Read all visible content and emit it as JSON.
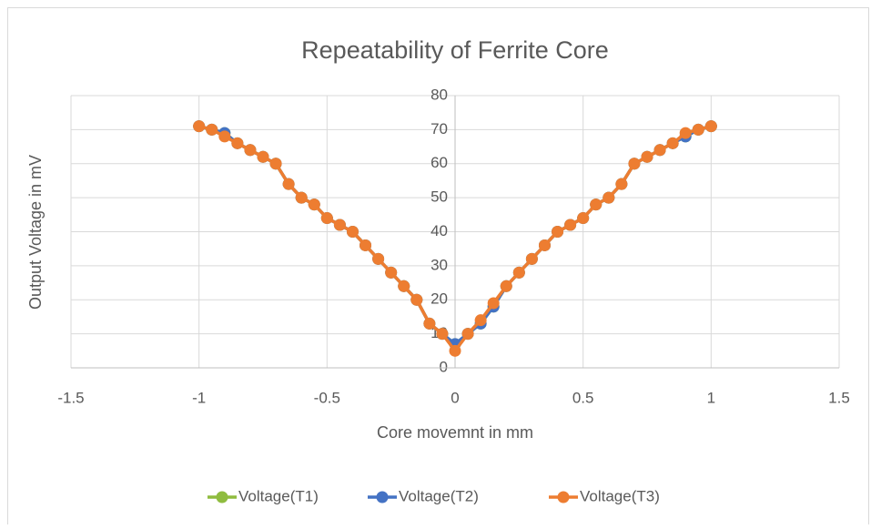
{
  "chart_data": {
    "type": "line",
    "title": "Repeatability of Ferrite Core",
    "x_label": "Core movemnt in mm",
    "y_label": "Output Voltage in mV",
    "x": [
      -1,
      -0.95,
      -0.9,
      -0.85,
      -0.8,
      -0.75,
      -0.7,
      -0.65,
      -0.6,
      -0.55,
      -0.5,
      -0.45,
      -0.4,
      -0.35,
      -0.3,
      -0.25,
      -0.2,
      -0.15,
      -0.1,
      -0.05,
      0,
      0.05,
      0.1,
      0.15,
      0.2,
      0.25,
      0.3,
      0.35,
      0.4,
      0.45,
      0.5,
      0.55,
      0.6,
      0.65,
      0.7,
      0.75,
      0.8,
      0.85,
      0.9,
      0.95,
      1
    ],
    "series": [
      {
        "name": "Voltage(T1)",
        "color": "#8fbc3f",
        "values": [
          71,
          70,
          69,
          66,
          64,
          62,
          60,
          54,
          50,
          48,
          44,
          42,
          40,
          36,
          32,
          28,
          24,
          20,
          13,
          10,
          7,
          10,
          13,
          18,
          24,
          28,
          32,
          36,
          40,
          42,
          44,
          48,
          50,
          54,
          60,
          62,
          64,
          66,
          68,
          70,
          71
        ]
      },
      {
        "name": "Voltage(T2)",
        "color": "#4472c4",
        "values": [
          71,
          70,
          69,
          66,
          64,
          62,
          60,
          54,
          50,
          48,
          44,
          42,
          40,
          36,
          32,
          28,
          24,
          20,
          13,
          10,
          7,
          10,
          13,
          18,
          24,
          28,
          32,
          36,
          40,
          42,
          44,
          48,
          50,
          54,
          60,
          62,
          64,
          66,
          68,
          70,
          71
        ]
      },
      {
        "name": "Voltage(T3)",
        "color": "#ed7d31",
        "values": [
          71,
          70,
          68,
          66,
          64,
          62,
          60,
          54,
          50,
          48,
          44,
          42,
          40,
          36,
          32,
          28,
          24,
          20,
          13,
          10,
          5,
          10,
          14,
          19,
          24,
          28,
          32,
          36,
          40,
          42,
          44,
          48,
          50,
          54,
          60,
          62,
          64,
          66,
          69,
          70,
          71
        ]
      }
    ],
    "xlim": [
      -1.5,
      1.5
    ],
    "xticks": [
      -1.5,
      -1,
      -0.5,
      0,
      0.5,
      1,
      1.5
    ],
    "ylim": [
      0,
      80
    ],
    "yticks": [
      0,
      10,
      20,
      30,
      40,
      50,
      60,
      70,
      80
    ],
    "grid": true,
    "legend": "bottom"
  }
}
